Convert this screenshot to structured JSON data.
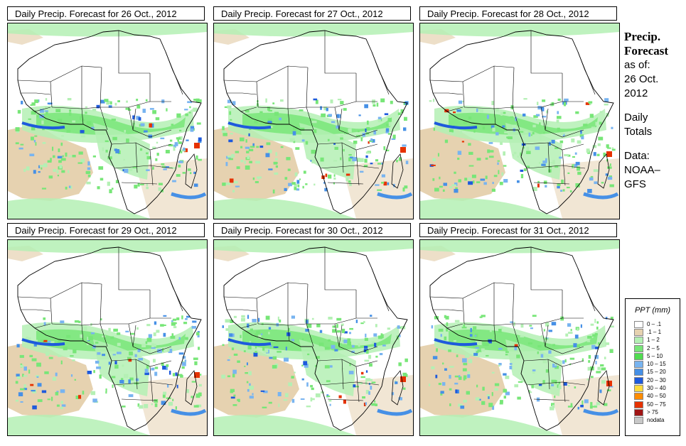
{
  "panels": [
    {
      "title": "Daily Precip. Forecast for  26 Oct., 2012"
    },
    {
      "title": "Daily Precip. Forecast for  27 Oct., 2012"
    },
    {
      "title": "Daily Precip. Forecast for  28 Oct., 2012"
    },
    {
      "title": "Daily Precip. Forecast for  29 Oct., 2012"
    },
    {
      "title": "Daily Precip. Forecast for  30 Oct., 2012"
    },
    {
      "title": "Daily Precip. Forecast for  31 Oct., 2012"
    }
  ],
  "side": {
    "title_line1": "Precip.",
    "title_line2": "Forecast",
    "asof_line1": "as of:",
    "asof_line2": "26 Oct.",
    "asof_line3": "2012",
    "daily_line1": "Daily",
    "daily_line2": "Totals",
    "data_line1": "Data:",
    "data_line2": "NOAA–",
    "data_line3": "GFS"
  },
  "legend": {
    "title": "PPT (mm)",
    "items": [
      {
        "label": "0 – .1",
        "color": "#ffffff"
      },
      {
        "label": ".1 – 1",
        "color": "#e6d2b0"
      },
      {
        "label": "1 – 2",
        "color": "#b4f0b4"
      },
      {
        "label": "2 – 5",
        "color": "#78e678"
      },
      {
        "label": "5 – 10",
        "color": "#50dc50"
      },
      {
        "label": "10 – 15",
        "color": "#78b4f0"
      },
      {
        "label": "15 – 20",
        "color": "#4690e6"
      },
      {
        "label": "20 – 30",
        "color": "#1e5adc"
      },
      {
        "label": "30 – 40",
        "color": "#ffdc3c"
      },
      {
        "label": "40 – 50",
        "color": "#ff8c00"
      },
      {
        "label": "50 – 75",
        "color": "#e63200"
      },
      {
        "label": "> 75",
        "color": "#a01414"
      },
      {
        "label": "nodata",
        "color": "#c8c8c8"
      }
    ]
  }
}
